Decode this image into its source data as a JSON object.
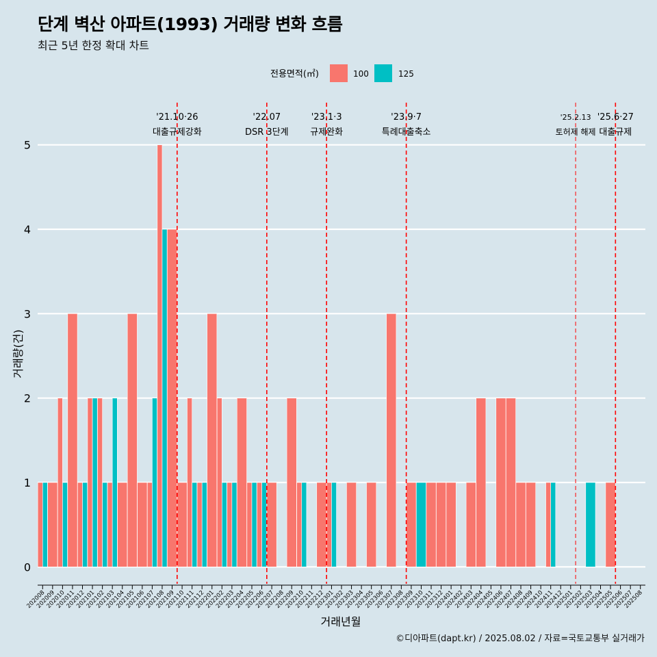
{
  "title": "단계 벽산 아파트(1993) 거래량 변화 흐름",
  "subtitle": "최근 5년 한정 확대 차트",
  "caption": "©디아파트(dapt.kr) / 2025.08.02 / 자료=국토교통부 실거래가",
  "chart_data": {
    "type": "bar",
    "xlabel": "거래년월",
    "ylabel": "거래량(건)",
    "ylim": [
      -0.2,
      5.5
    ],
    "yticks": [
      0,
      1,
      2,
      3,
      4,
      5
    ],
    "legend": {
      "title": "전용면적(㎡)",
      "position": "top",
      "entries": [
        {
          "name": "100",
          "color": "#f8766d"
        },
        {
          "name": "125",
          "color": "#00bfc4"
        }
      ]
    },
    "categories": [
      "202008",
      "202009",
      "202010",
      "202011",
      "202012",
      "202101",
      "202102",
      "202103",
      "202104",
      "202105",
      "202106",
      "202107",
      "202108",
      "202109",
      "202110",
      "202111",
      "202112",
      "202201",
      "202202",
      "202203",
      "202204",
      "202205",
      "202206",
      "202207",
      "202208",
      "202209",
      "202210",
      "202211",
      "202212",
      "202301",
      "202302",
      "202303",
      "202304",
      "202305",
      "202306",
      "202307",
      "202308",
      "202309",
      "202310",
      "202311",
      "202312",
      "202401",
      "202402",
      "202403",
      "202404",
      "202405",
      "202406",
      "202407",
      "202408",
      "202409",
      "202410",
      "202411",
      "202412",
      "202501",
      "202502",
      "202503",
      "202504",
      "202505",
      "202506",
      "202507",
      "202508"
    ],
    "series": [
      {
        "name": "100",
        "color": "#f8766d",
        "values": [
          1,
          1,
          2,
          3,
          1,
          2,
          2,
          1,
          1,
          3,
          1,
          1,
          5,
          4,
          1,
          2,
          1,
          3,
          2,
          1,
          2,
          1,
          1,
          1,
          0,
          2,
          1,
          0,
          1,
          1,
          0,
          1,
          0,
          1,
          0,
          3,
          0,
          1,
          0,
          1,
          1,
          1,
          0,
          1,
          2,
          0,
          2,
          2,
          1,
          1,
          0,
          1,
          0,
          0,
          0,
          0,
          0,
          1,
          0,
          0,
          0
        ]
      },
      {
        "name": "125",
        "color": "#00bfc4",
        "values": [
          1,
          0,
          1,
          0,
          1,
          2,
          1,
          2,
          0,
          0,
          0,
          2,
          4,
          0,
          0,
          1,
          1,
          0,
          1,
          1,
          0,
          1,
          1,
          0,
          0,
          0,
          1,
          0,
          0,
          1,
          0,
          0,
          0,
          0,
          0,
          0,
          0,
          0,
          1,
          0,
          0,
          0,
          0,
          0,
          0,
          0,
          0,
          0,
          0,
          0,
          0,
          1,
          0,
          0,
          0,
          1,
          0,
          0,
          0,
          0,
          0
        ]
      }
    ],
    "annotations": [
      {
        "index": 14.0,
        "date": "'21.10·26",
        "label": "대출규제강화",
        "style": "dashed"
      },
      {
        "index": 23.0,
        "date": "'22.07",
        "label": "DSR 3단계",
        "style": "dashed"
      },
      {
        "index": 29.0,
        "date": "'23.1·3",
        "label": "규제완화",
        "style": "dashed"
      },
      {
        "index": 37.0,
        "date": "'23.9·7",
        "label": "특례대출축소",
        "style": "dashed"
      },
      {
        "index": 54.0,
        "date": "'25.2.13",
        "label": "토허제 해제",
        "style": "thin"
      },
      {
        "index": 58.0,
        "date": "'25.6·27",
        "label": "대출규제",
        "style": "dashed"
      }
    ]
  }
}
